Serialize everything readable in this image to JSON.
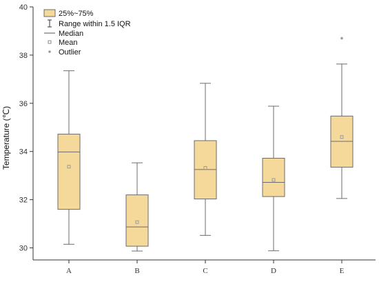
{
  "chart_data": {
    "type": "box",
    "ylabel": "Temperature (℃)",
    "xlabel": "",
    "ylim": [
      29.5,
      40
    ],
    "yticks": [
      30,
      32,
      34,
      36,
      38,
      40
    ],
    "grid": false,
    "legend_position": "top-left",
    "legend": {
      "iqr_label": "25%~75%",
      "range_label": "Range within 1.5 IQR",
      "median_label": "Median",
      "mean_label": "Mean",
      "outlier_label": "Outlier"
    },
    "categories": [
      "A",
      "B",
      "C",
      "D",
      "E"
    ],
    "boxes": [
      {
        "category": "A",
        "whisker_low": 30.15,
        "q1": 31.6,
        "median": 33.98,
        "q3": 34.72,
        "whisker_high": 37.35,
        "mean": 33.37,
        "outliers": []
      },
      {
        "category": "B",
        "whisker_low": 29.87,
        "q1": 30.07,
        "median": 30.87,
        "q3": 32.2,
        "whisker_high": 33.53,
        "mean": 31.07,
        "outliers": []
      },
      {
        "category": "C",
        "whisker_low": 30.52,
        "q1": 32.03,
        "median": 33.25,
        "q3": 34.45,
        "whisker_high": 36.83,
        "mean": 33.32,
        "outliers": []
      },
      {
        "category": "D",
        "whisker_low": 29.88,
        "q1": 32.13,
        "median": 32.72,
        "q3": 33.72,
        "whisker_high": 35.88,
        "mean": 32.82,
        "outliers": []
      },
      {
        "category": "E",
        "whisker_low": 32.05,
        "q1": 33.35,
        "median": 34.42,
        "q3": 35.47,
        "whisker_high": 37.63,
        "mean": 34.6,
        "outliers": [
          38.7
        ]
      }
    ],
    "colors": {
      "box_fill": "#f5d99a",
      "box_stroke": "#6b6b6b",
      "axis": "#333333",
      "mean_marker": "#9a9a9a",
      "outlier_marker": "#9a9a9a"
    }
  }
}
